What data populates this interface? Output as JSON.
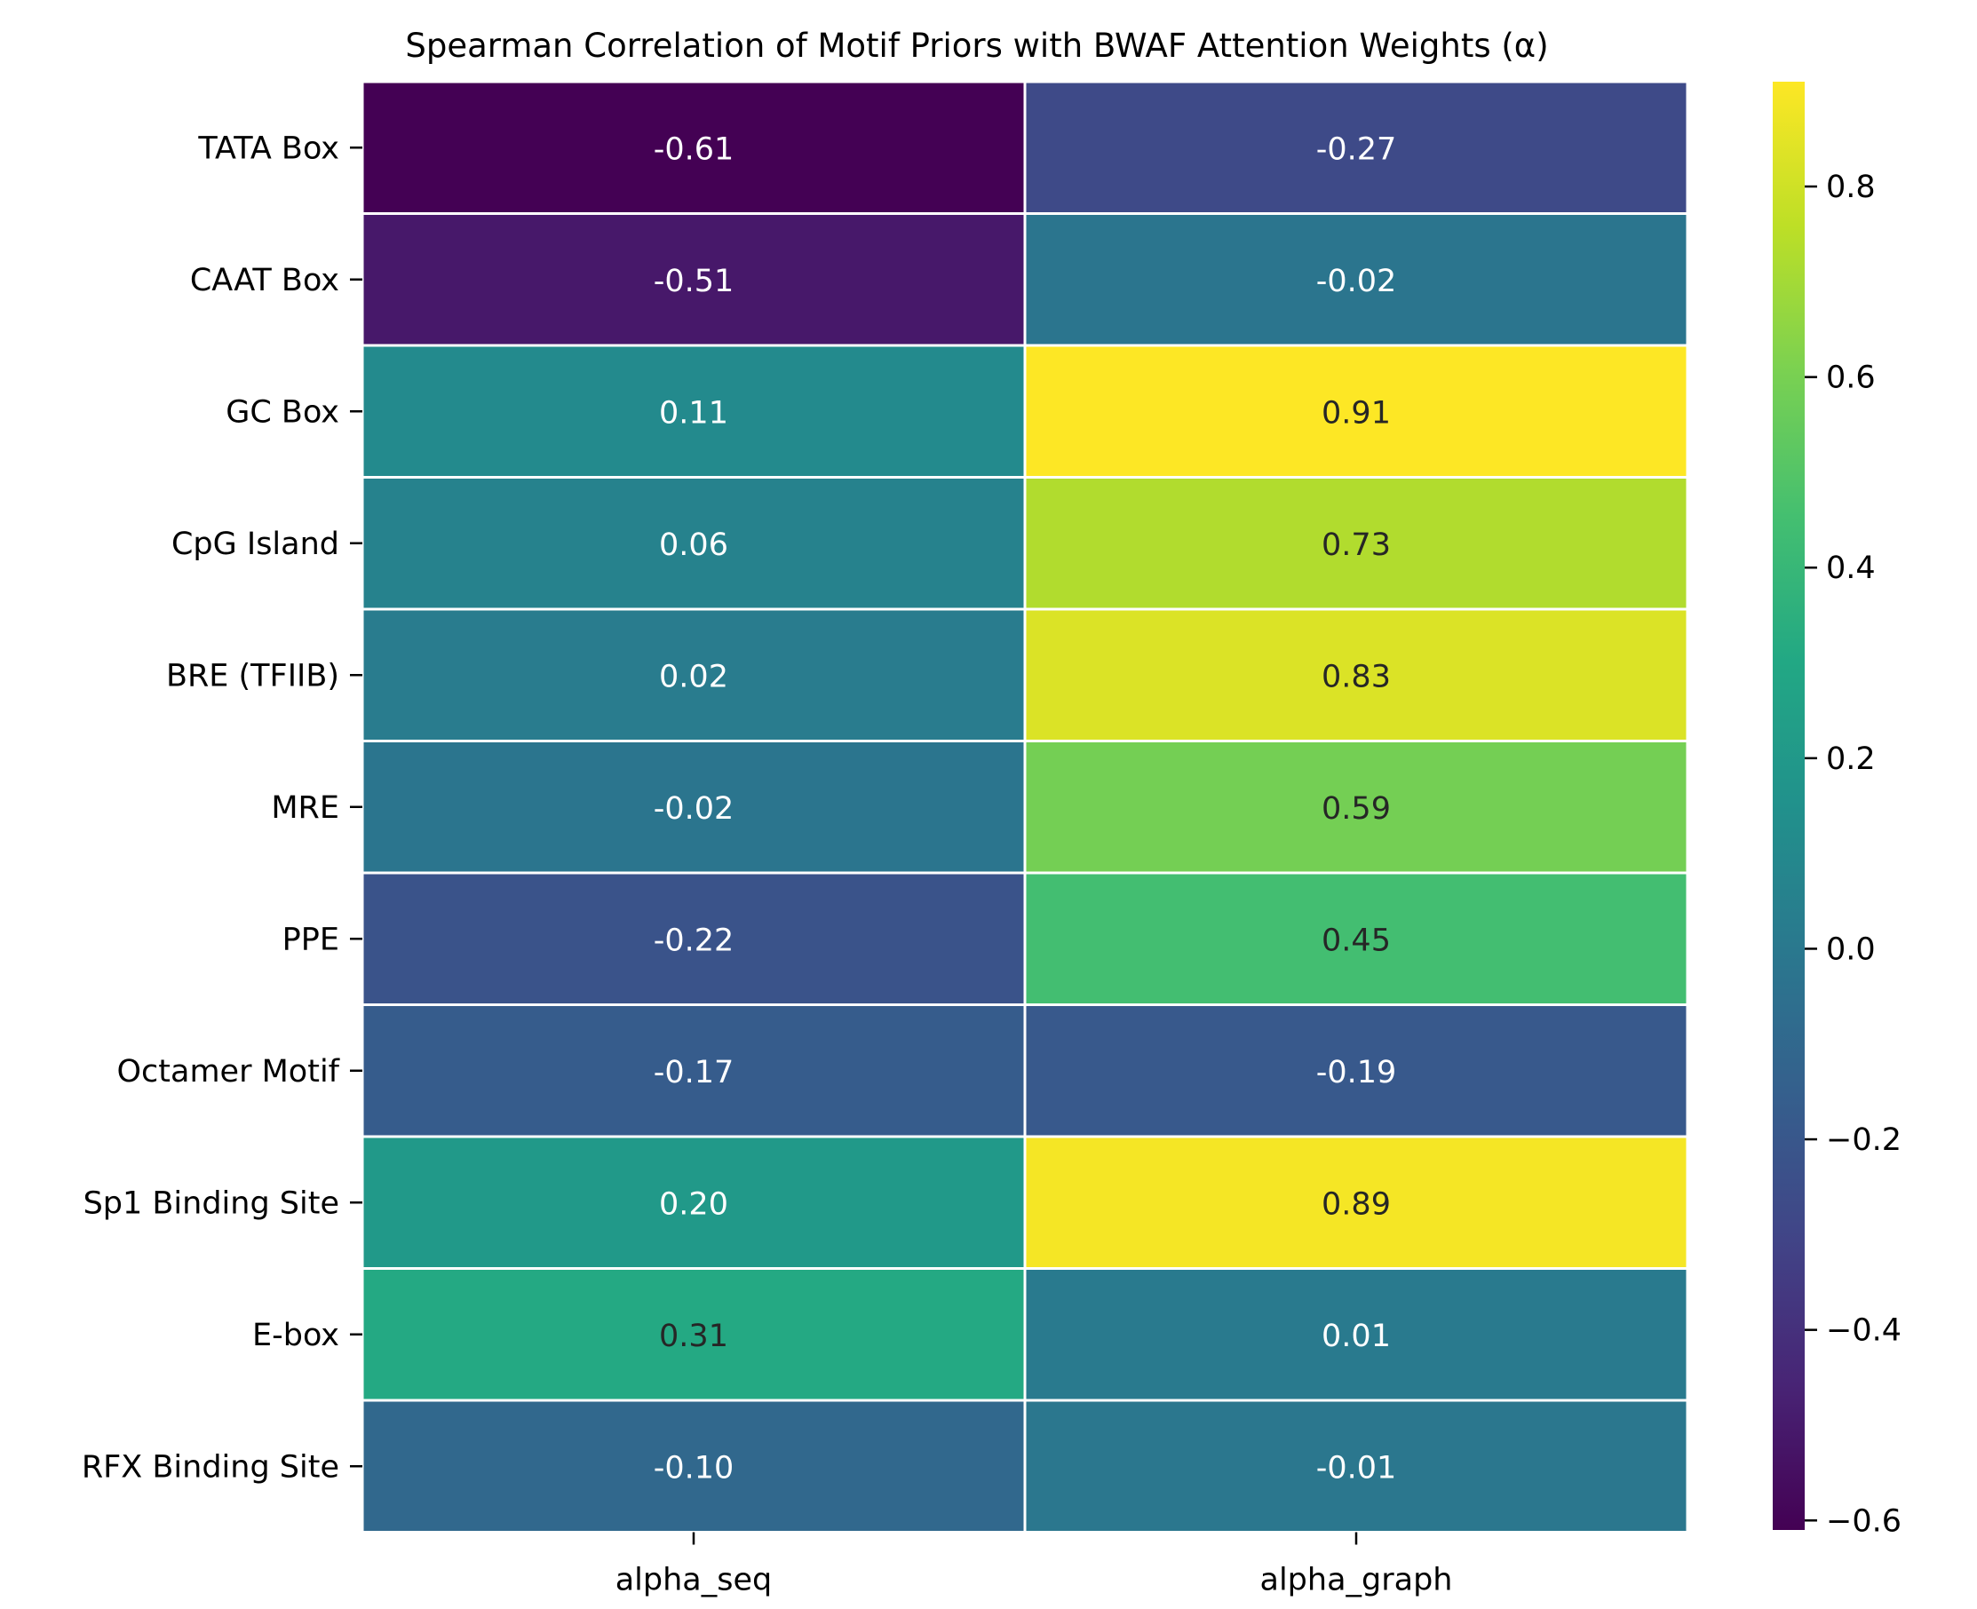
{
  "chart_data": {
    "type": "heatmap",
    "title": "Spearman Correlation of Motif Priors with BWAF Attention Weights (α)",
    "xlabel": "",
    "ylabel": "",
    "columns": [
      "alpha_seq",
      "alpha_graph"
    ],
    "rows": [
      "TATA Box",
      "CAAT Box",
      "GC Box",
      "CpG Island",
      "BRE (TFIIB)",
      "MRE",
      "PPE",
      "Octamer Motif",
      "Sp1 Binding Site",
      "E-box",
      "RFX Binding Site"
    ],
    "values": [
      [
        -0.61,
        -0.27
      ],
      [
        -0.51,
        -0.02
      ],
      [
        0.11,
        0.91
      ],
      [
        0.06,
        0.73
      ],
      [
        0.02,
        0.83
      ],
      [
        -0.02,
        0.59
      ],
      [
        -0.22,
        0.45
      ],
      [
        -0.17,
        -0.19
      ],
      [
        0.2,
        0.89
      ],
      [
        0.31,
        0.01
      ],
      [
        -0.1,
        -0.01
      ]
    ],
    "value_labels": [
      [
        "-0.61",
        "-0.27"
      ],
      [
        "-0.51",
        "-0.02"
      ],
      [
        "0.11",
        "0.91"
      ],
      [
        "0.06",
        "0.73"
      ],
      [
        "0.02",
        "0.83"
      ],
      [
        "-0.02",
        "0.59"
      ],
      [
        "-0.22",
        "0.45"
      ],
      [
        "-0.17",
        "-0.19"
      ],
      [
        "0.20",
        "0.89"
      ],
      [
        "0.31",
        "0.01"
      ],
      [
        "-0.10",
        "-0.01"
      ]
    ],
    "colormap": "viridis",
    "color_range": [
      -0.61,
      0.91
    ],
    "colorbar_ticks": [
      0.8,
      0.6,
      0.4,
      0.2,
      0.0,
      -0.2,
      -0.4,
      -0.6
    ],
    "colorbar_tick_labels": [
      "0.8",
      "0.6",
      "0.4",
      "0.2",
      "0.0",
      "−0.2",
      "−0.4",
      "−0.6"
    ],
    "grid": false
  }
}
